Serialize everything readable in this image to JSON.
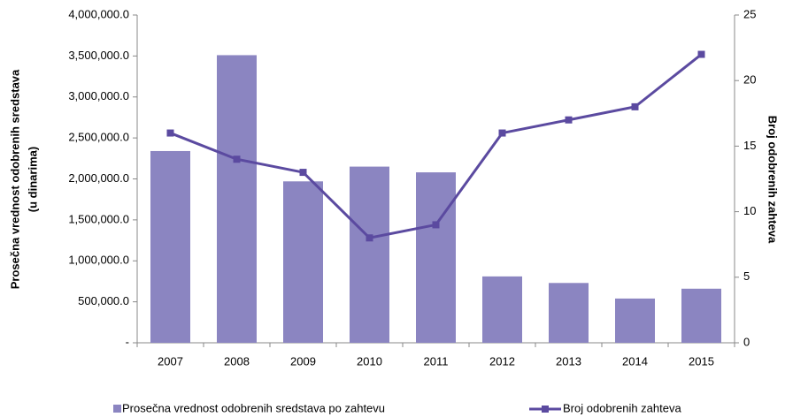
{
  "chart_data": {
    "type": "bar",
    "categories": [
      "2007",
      "2008",
      "2009",
      "2010",
      "2011",
      "2012",
      "2013",
      "2014",
      "2015"
    ],
    "series": [
      {
        "name": "Prosečna vrednost odobrenih sredstava po zahtevu",
        "color": "#8b85c1",
        "values": [
          2340000,
          3510000,
          1970000,
          2150000,
          2080000,
          810000,
          730000,
          540000,
          660000
        ]
      },
      {
        "name": "Broj odobrenih zahteva",
        "color": "#5b4aa0",
        "type": "line",
        "axis": "y2",
        "values": [
          16,
          14,
          13,
          8,
          9,
          16,
          17,
          18,
          22
        ]
      }
    ],
    "y_label": [
      "Prosečna vrednost odobrenih sredstava",
      "(u dinarima)"
    ],
    "y2_label": "Broj odobrenih zahteva",
    "ylim": [
      0,
      4000000
    ],
    "yticks": [
      {
        "value": 0,
        "label": "-"
      },
      {
        "value": 500000,
        "label": "500,000.0"
      },
      {
        "value": 1000000,
        "label": "1,000,000.0"
      },
      {
        "value": 1500000,
        "label": "1,500,000.0"
      },
      {
        "value": 2000000,
        "label": "2,000,000.0"
      },
      {
        "value": 2500000,
        "label": "2,500,000.0"
      },
      {
        "value": 3000000,
        "label": "3,000,000.0"
      },
      {
        "value": 3500000,
        "label": "3,500,000.0"
      },
      {
        "value": 4000000,
        "label": "4,000,000.0"
      }
    ],
    "y2lim": [
      0,
      25
    ],
    "y2ticks": [
      0,
      5,
      10,
      15,
      20,
      25
    ],
    "legend": "bottom"
  }
}
